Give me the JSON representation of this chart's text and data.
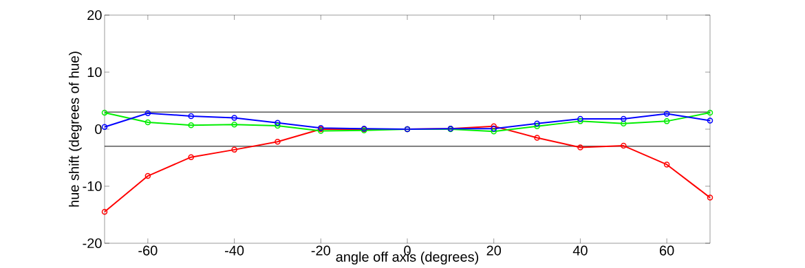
{
  "chart_data": {
    "type": "line",
    "xlabel": "angle off axis (degrees)",
    "ylabel": "hue shift (degrees of hue)",
    "x": [
      -70,
      -60,
      -50,
      -40,
      -30,
      -20,
      -10,
      0,
      10,
      20,
      30,
      40,
      50,
      60,
      70
    ],
    "series": [
      {
        "color": "#ff0000",
        "values": [
          -14.5,
          -8.2,
          -4.9,
          -3.6,
          -2.2,
          0,
          0,
          0,
          0.1,
          0.5,
          -1.5,
          -3.2,
          -2.9,
          -6.2,
          -12.0
        ]
      },
      {
        "color": "#00ee00",
        "values": [
          2.9,
          1.2,
          0.7,
          0.8,
          0.6,
          -0.3,
          -0.2,
          0,
          0,
          -0.4,
          0.5,
          1.4,
          1.0,
          1.4,
          2.9
        ]
      },
      {
        "color": "#0000ff",
        "values": [
          0.4,
          2.8,
          2.3,
          2.0,
          1.1,
          0.2,
          0.1,
          0,
          0.1,
          0.1,
          1.0,
          1.8,
          1.8,
          2.7,
          1.5
        ]
      }
    ],
    "xlim": [
      -70,
      70
    ],
    "ylim": [
      -20,
      20
    ],
    "xticks": [
      -60,
      -40,
      -20,
      0,
      20,
      40,
      60
    ],
    "yticks": [
      -20,
      -10,
      0,
      10,
      20
    ],
    "ref_lines": [
      {
        "axis": "y",
        "value": 3,
        "color": "#000000"
      },
      {
        "axis": "y",
        "value": -3,
        "color": "#000000"
      }
    ],
    "marker": "circle",
    "grid": false
  }
}
